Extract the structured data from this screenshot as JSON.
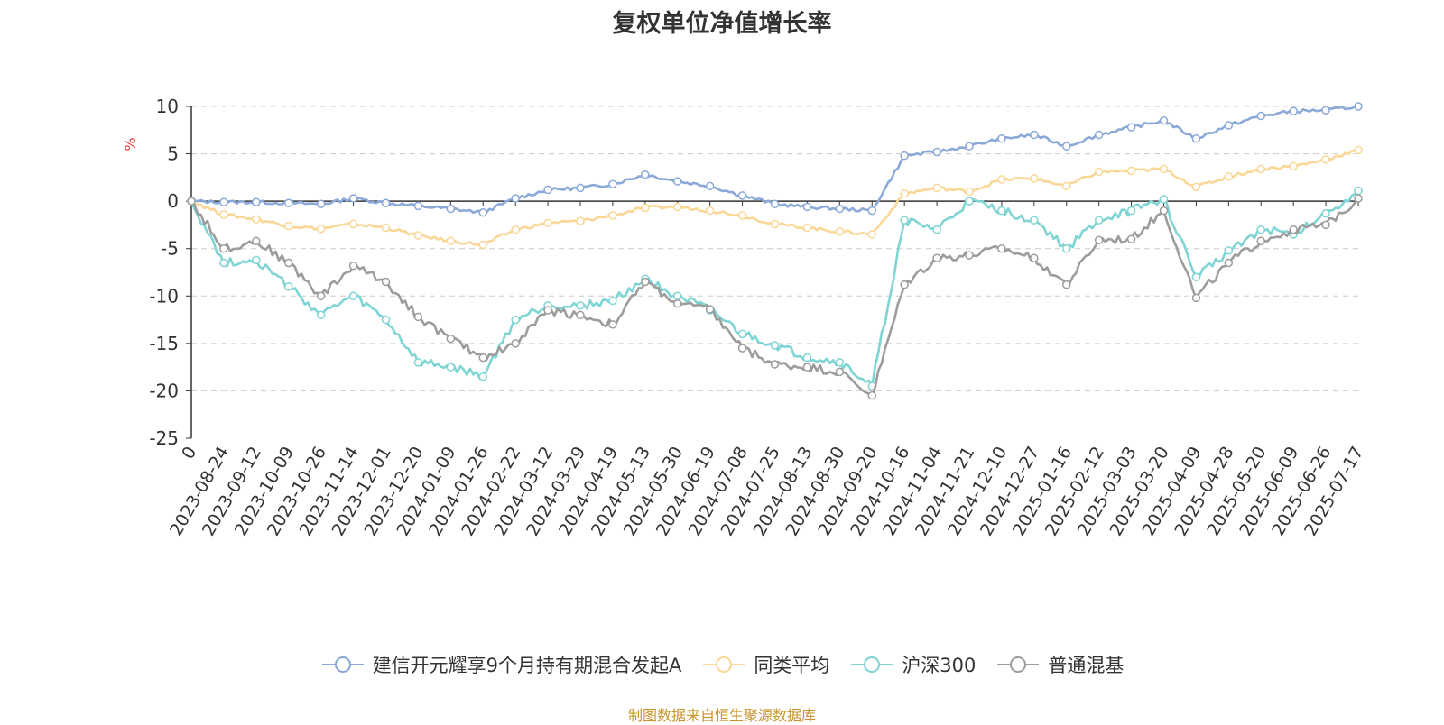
{
  "chart_data": {
    "type": "line",
    "title": "复权单位净值增长率",
    "ylabel": "%",
    "ylim": [
      -25,
      10
    ],
    "yticks": [
      10,
      5,
      0,
      -5,
      -10,
      -15,
      -20,
      -25
    ],
    "grid": true,
    "legend_position": "bottom",
    "x_tick_labels": [
      "0",
      "2023-08-24",
      "2023-09-12",
      "2023-10-09",
      "2023-10-26",
      "2023-11-14",
      "2023-12-01",
      "2023-12-20",
      "2024-01-09",
      "2024-01-26",
      "2024-02-22",
      "2024-03-12",
      "2024-03-29",
      "2024-04-19",
      "2024-05-13",
      "2024-05-30",
      "2024-06-19",
      "2024-07-08",
      "2024-07-25",
      "2024-08-13",
      "2024-08-30",
      "2024-09-20",
      "2024-10-16",
      "2024-11-04",
      "2024-11-21",
      "2024-12-10",
      "2024-12-27",
      "2025-01-16",
      "2025-02-12",
      "2025-03-03",
      "2025-03-20",
      "2025-04-09",
      "2025-04-28",
      "2025-05-20",
      "2025-06-09",
      "2025-06-26",
      "2025-07-17"
    ],
    "series": [
      {
        "name": "建信开元耀享9个月持有期混合发起A",
        "color": "#8aa8d8",
        "values": [
          0,
          -0.1,
          -0.1,
          -0.2,
          -0.3,
          0.3,
          -0.2,
          -0.5,
          -0.8,
          -1.2,
          0.3,
          1.2,
          1.4,
          1.8,
          2.8,
          2.1,
          1.6,
          0.6,
          -0.3,
          -0.6,
          -0.8,
          -1.0,
          4.8,
          5.2,
          5.8,
          6.6,
          7.0,
          5.8,
          7.0,
          7.8,
          8.5,
          6.6,
          8.0,
          9.0,
          9.5,
          9.6,
          10.0
        ]
      },
      {
        "name": "同类平均",
        "color": "#fad797",
        "values": [
          0,
          -1.4,
          -1.9,
          -2.6,
          -2.9,
          -2.4,
          -2.8,
          -3.6,
          -4.2,
          -4.6,
          -3.0,
          -2.3,
          -2.1,
          -1.5,
          -0.7,
          -0.6,
          -1.0,
          -1.5,
          -2.4,
          -2.8,
          -3.2,
          -3.5,
          0.8,
          1.4,
          1.0,
          2.3,
          2.4,
          1.6,
          3.1,
          3.2,
          3.4,
          1.5,
          2.6,
          3.4,
          3.7,
          4.4,
          5.4
        ]
      },
      {
        "name": "沪深300",
        "color": "#7fd4d4",
        "values": [
          0,
          -6.5,
          -6.2,
          -9.0,
          -12.0,
          -10.0,
          -12.5,
          -17.0,
          -17.5,
          -18.5,
          -12.5,
          -11.0,
          -11.0,
          -10.5,
          -8.2,
          -10.0,
          -11.5,
          -14.0,
          -15.2,
          -16.5,
          -17.0,
          -19.5,
          -2.0,
          -3.0,
          0.0,
          -1.0,
          -2.0,
          -5.0,
          -2.0,
          -1.0,
          0.2,
          -8.0,
          -5.2,
          -3.0,
          -3.5,
          -1.3,
          1.1
        ]
      },
      {
        "name": "普通混基",
        "color": "#9c9c9c",
        "values": [
          0,
          -5.0,
          -4.2,
          -6.5,
          -10.0,
          -6.8,
          -8.5,
          -12.2,
          -14.5,
          -16.5,
          -15.0,
          -11.5,
          -12.0,
          -13.0,
          -8.5,
          -10.8,
          -11.4,
          -15.5,
          -17.2,
          -17.5,
          -18.0,
          -20.5,
          -8.8,
          -6.0,
          -5.7,
          -5.0,
          -6.0,
          -8.8,
          -4.1,
          -4.0,
          -1.0,
          -10.2,
          -6.5,
          -4.2,
          -3.0,
          -2.5,
          0.3
        ]
      }
    ]
  },
  "footer": {
    "source": "制图数据来自恒生聚源数据库"
  }
}
